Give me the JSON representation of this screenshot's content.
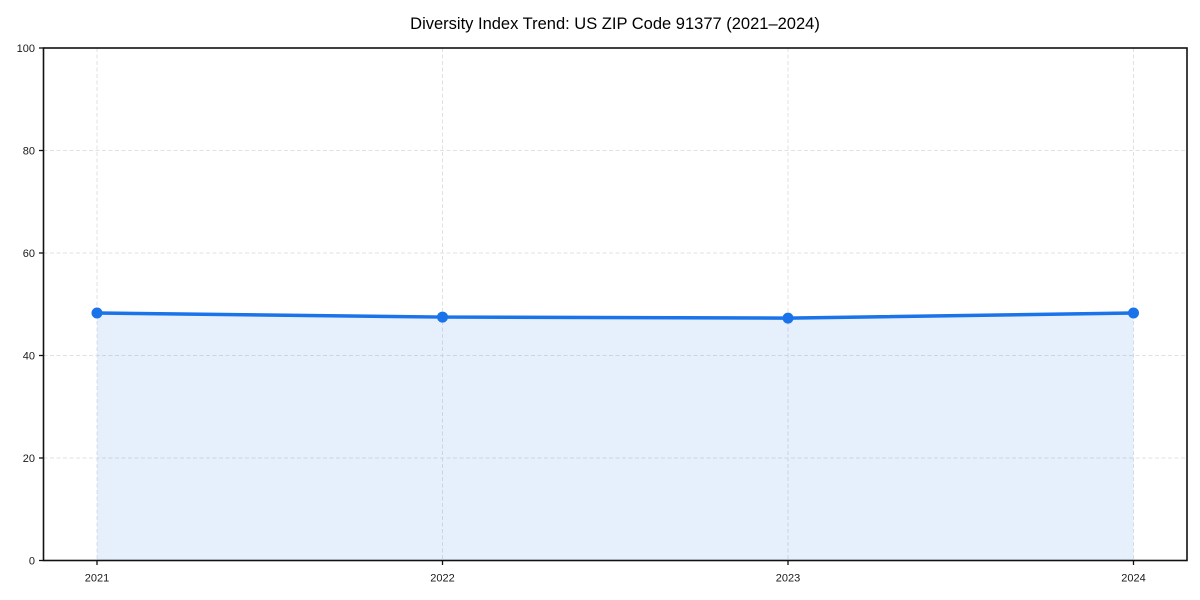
{
  "chart_data": {
    "type": "line",
    "title": "Diversity Index Trend: US ZIP Code 91377 (2021–2024)",
    "categories": [
      "2021",
      "2022",
      "2023",
      "2024"
    ],
    "series": [
      {
        "name": "Diversity Index",
        "values": [
          48.3,
          47.5,
          47.3,
          48.3
        ]
      }
    ],
    "xlabel": "",
    "ylabel": "",
    "ylim": [
      0,
      100
    ],
    "y_ticks": [
      0,
      20,
      40,
      60,
      80,
      100
    ],
    "area_fill": true,
    "markers": true,
    "grid": {
      "shown": true,
      "style": "dashed",
      "horizontal": true,
      "vertical": true
    },
    "legend_position": "none",
    "colors": {
      "line": "#1a73e8",
      "marker": "#1a73e8",
      "fill": "rgba(26,115,232,0.11)",
      "grid": "#e1e1e1",
      "spine": "#111111",
      "tick": "#111111",
      "text": "#1a1a1a",
      "background": "#ffffff"
    }
  }
}
